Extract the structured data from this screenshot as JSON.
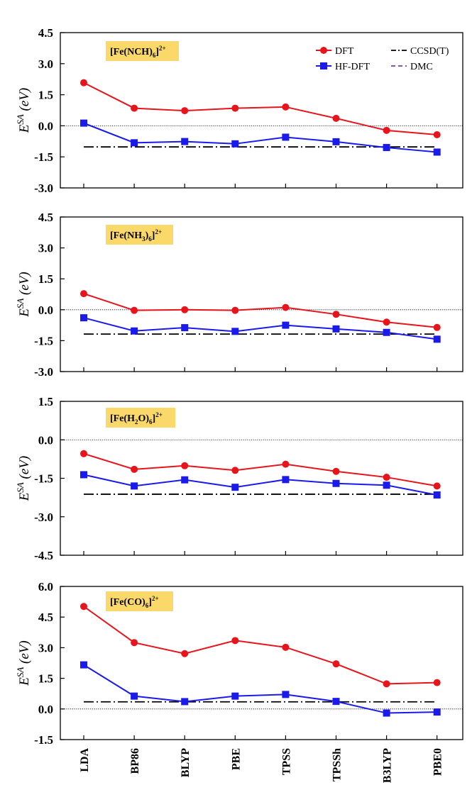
{
  "chart_data": [
    {
      "type": "line",
      "title": "[Fe(NCH)6]2+",
      "title_parts": [
        {
          "t": "[Fe(NCH)",
          "s": "n"
        },
        {
          "t": "6",
          "s": "sub"
        },
        {
          "t": "]",
          "s": "n"
        },
        {
          "t": "2+",
          "s": "sup"
        }
      ],
      "ylabel": "E^SA (eV)",
      "ylim": [
        -3.0,
        4.5
      ],
      "yticks": [
        "4.5",
        "3.0",
        "1.5",
        "0.0",
        "-1.5",
        "-3.0"
      ],
      "ytick_values": [
        4.5,
        3.0,
        1.5,
        0.0,
        -1.5,
        -3.0
      ],
      "series": [
        {
          "name": "DFT",
          "values": [
            2.08,
            0.85,
            0.73,
            0.85,
            0.91,
            0.36,
            -0.22,
            -0.43
          ]
        },
        {
          "name": "HF-DFT",
          "values": [
            0.13,
            -0.82,
            -0.76,
            -0.87,
            -0.55,
            -0.77,
            -1.05,
            -1.27
          ]
        }
      ],
      "reference": {
        "name": "CCSD(T)",
        "value": -1.02
      }
    },
    {
      "type": "line",
      "title": "[Fe(NH3)6]2+",
      "title_parts": [
        {
          "t": "[Fe(NH",
          "s": "n"
        },
        {
          "t": "3",
          "s": "sub"
        },
        {
          "t": ")",
          "s": "n"
        },
        {
          "t": "6",
          "s": "sub"
        },
        {
          "t": "]",
          "s": "n"
        },
        {
          "t": "2+",
          "s": "sup"
        }
      ],
      "ylabel": "E^SA (eV)",
      "ylim": [
        -3.0,
        4.5
      ],
      "yticks": [
        "4.5",
        "3.0",
        "1.5",
        "0.0",
        "-1.5",
        "-3.0"
      ],
      "ytick_values": [
        4.5,
        3.0,
        1.5,
        0.0,
        -1.5,
        -3.0
      ],
      "series": [
        {
          "name": "DFT",
          "values": [
            0.78,
            -0.03,
            0.0,
            -0.03,
            0.11,
            -0.22,
            -0.6,
            -0.86
          ]
        },
        {
          "name": "HF-DFT",
          "values": [
            -0.39,
            -1.03,
            -0.87,
            -1.05,
            -0.75,
            -0.93,
            -1.1,
            -1.43
          ]
        }
      ],
      "reference": {
        "name": "CCSD(T)",
        "value": -1.18
      }
    },
    {
      "type": "line",
      "title": "[Fe(H2O)6]2+",
      "title_parts": [
        {
          "t": "[Fe(H",
          "s": "n"
        },
        {
          "t": "2",
          "s": "sub"
        },
        {
          "t": "O)",
          "s": "n"
        },
        {
          "t": "6",
          "s": "sub"
        },
        {
          "t": "]",
          "s": "n"
        },
        {
          "t": "2+",
          "s": "sup"
        }
      ],
      "ylabel": "E^SA (eV)",
      "ylim": [
        -4.5,
        1.5
      ],
      "yticks": [
        "1.5",
        "0.0",
        "-1.5",
        "-3.0",
        "-4.5"
      ],
      "ytick_values": [
        1.5,
        0.0,
        -1.5,
        -3.0,
        -4.5
      ],
      "series": [
        {
          "name": "DFT",
          "values": [
            -0.54,
            -1.15,
            -1.01,
            -1.19,
            -0.95,
            -1.23,
            -1.46,
            -1.8
          ]
        },
        {
          "name": "HF-DFT",
          "values": [
            -1.36,
            -1.8,
            -1.56,
            -1.85,
            -1.55,
            -1.7,
            -1.77,
            -2.15
          ]
        },
        {
          "name": "DMC",
          "values": []
        }
      ],
      "reference": {
        "name": "CCSD(T)",
        "value": -2.12
      }
    },
    {
      "type": "line",
      "title": "[Fe(CO)6]2+",
      "title_parts": [
        {
          "t": "[Fe(CO)",
          "s": "n"
        },
        {
          "t": "6",
          "s": "sub"
        },
        {
          "t": "]",
          "s": "n"
        },
        {
          "t": "2+",
          "s": "sup"
        }
      ],
      "ylabel": "E^SA (eV)",
      "ylim": [
        -1.5,
        6.0
      ],
      "yticks": [
        "6.0",
        "4.5",
        "3.0",
        "1.5",
        "0.0",
        "-1.5"
      ],
      "ytick_values": [
        6.0,
        4.5,
        3.0,
        1.5,
        0.0,
        -1.5
      ],
      "series": [
        {
          "name": "DFT",
          "values": [
            5.02,
            3.25,
            2.71,
            3.35,
            3.02,
            2.21,
            1.23,
            1.29
          ]
        },
        {
          "name": "HF-DFT",
          "values": [
            2.16,
            0.63,
            0.36,
            0.63,
            0.71,
            0.37,
            -0.2,
            -0.15
          ]
        }
      ],
      "reference": {
        "name": "CCSD(T)",
        "value": 0.35
      }
    }
  ],
  "categories": [
    "LDA",
    "BP86",
    "BLYP",
    "PBE",
    "TPSS",
    "TPSSh",
    "B3LYP",
    "PBE0"
  ],
  "legend": [
    {
      "name": "DFT",
      "color": "#e8141c",
      "marker": "circle"
    },
    {
      "name": "CCSD(T)",
      "color": "#000000",
      "marker": "dash-dot"
    },
    {
      "name": "HF-DFT",
      "color": "#1a1aeb",
      "marker": "square"
    },
    {
      "name": "DMC",
      "color": "#7a3fa0",
      "marker": "dash"
    }
  ],
  "colors": {
    "dft": "#e8141c",
    "hfdft": "#1a1aeb",
    "ref": "#000000",
    "dmc": "#7a3fa0",
    "title_bg": "#fbd86a"
  }
}
